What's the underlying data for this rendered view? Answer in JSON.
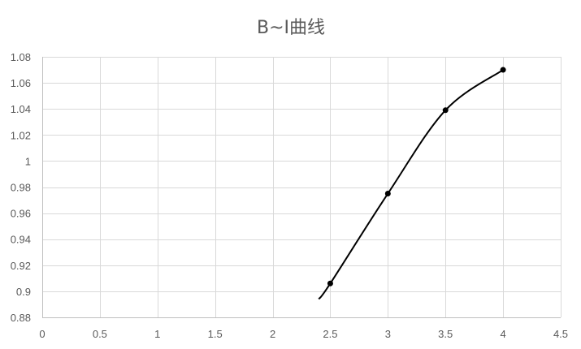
{
  "chart_data": {
    "type": "scatter",
    "title": "B~I曲线",
    "xlabel": "",
    "ylabel": "",
    "xlim": [
      0,
      4.5
    ],
    "ylim": [
      0.88,
      1.08
    ],
    "x_ticks": [
      0,
      0.5,
      1,
      1.5,
      2,
      2.5,
      3,
      3.5,
      4,
      4.5
    ],
    "x_tick_labels": [
      "0",
      "0.5",
      "1",
      "1.5",
      "2",
      "2.5",
      "3",
      "3.5",
      "4",
      "4.5"
    ],
    "y_ticks": [
      0.88,
      0.9,
      0.92,
      0.94,
      0.96,
      0.98,
      1,
      1.02,
      1.04,
      1.06,
      1.08
    ],
    "y_tick_labels": [
      "0.88",
      "0.9",
      "0.92",
      "0.94",
      "0.96",
      "0.98",
      "1",
      "1.02",
      "1.04",
      "1.06",
      "1.08"
    ],
    "grid": true,
    "legend": false,
    "series": [
      {
        "color": "#000000",
        "smooth": true,
        "x": [
          2.5,
          3,
          3.5,
          4
        ],
        "y": [
          0.906,
          0.975,
          1.039,
          1.07
        ]
      }
    ],
    "curve_start": {
      "x": 2.4,
      "y": 0.894
    }
  }
}
